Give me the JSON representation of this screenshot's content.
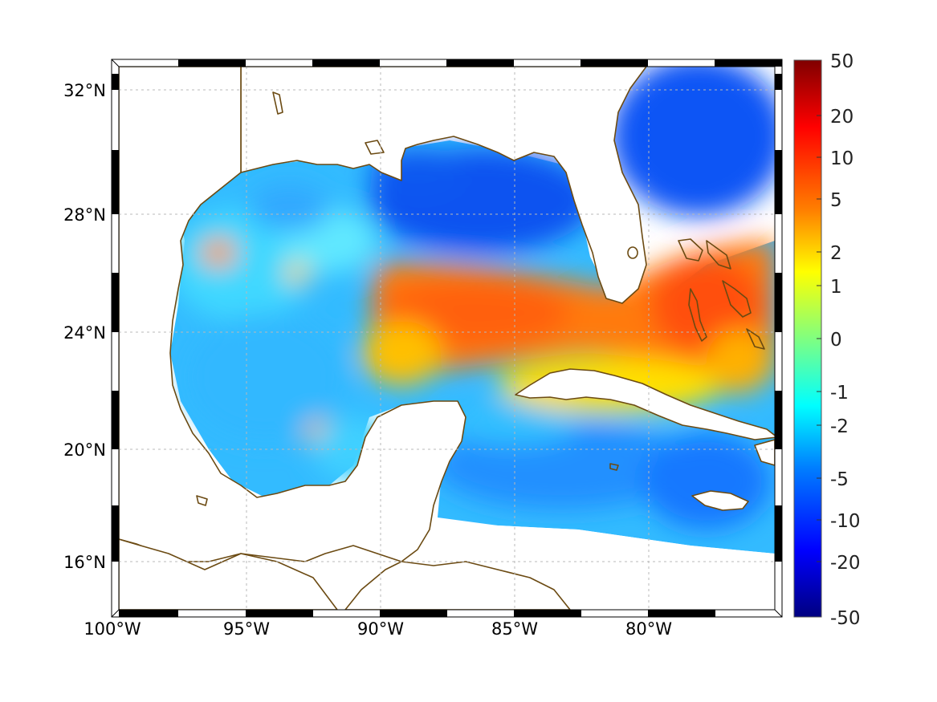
{
  "map": {
    "lon_labels": [
      "100°W",
      "95°W",
      "90°W",
      "85°W",
      "80°W"
    ],
    "lat_labels": [
      "16°N",
      "20°N",
      "24°N",
      "28°N",
      "32°N"
    ],
    "lon_range": [
      -100,
      -75
    ],
    "lat_range": [
      14.3,
      33
    ],
    "grid": true,
    "frame_style": "black-white striped border",
    "coastline_color": "#6b4a12"
  },
  "colorbar": {
    "tick_labels": [
      "50",
      "20",
      "10",
      "5",
      "2",
      "1",
      "0",
      "-1",
      "-2",
      "-5",
      "-10",
      "-20",
      "-50"
    ],
    "colormap": "jet",
    "placement": "right"
  },
  "field": {
    "description_values": {
      "yucatan_to_bahamas_band": 5,
      "bahamas_max": 10,
      "northeast_gulf": -10,
      "atlantic_north_of_bahamas": -10,
      "western_gulf": -2,
      "caribbean": -5,
      "western_gulf_warm_spot": 2,
      "bay_of_campeche_warm_spot": 2
    }
  }
}
